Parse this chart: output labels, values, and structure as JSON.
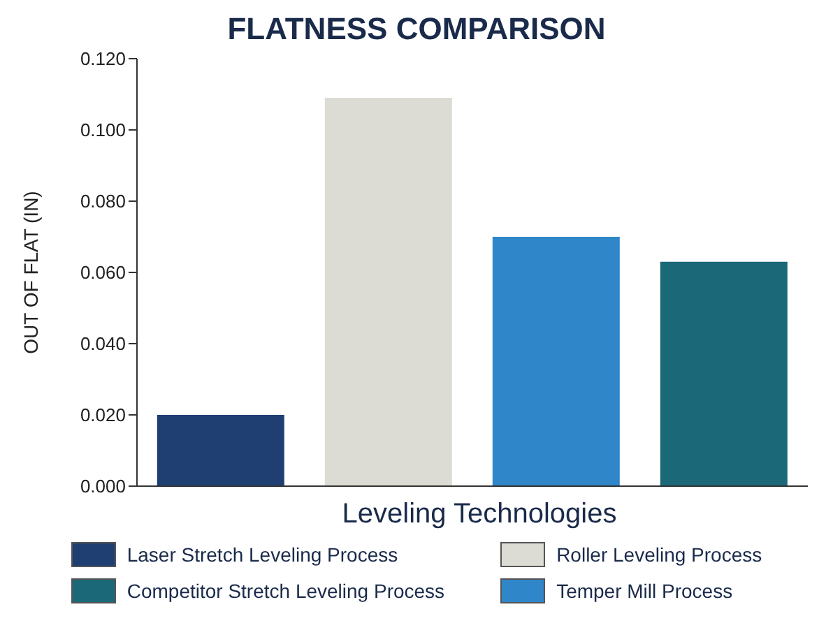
{
  "chart_data": {
    "type": "bar",
    "title": "FLATNESS COMPARISON",
    "xlabel": "Leveling Technologies",
    "ylabel": "OUT OF FLAT (IN)",
    "categories": [
      null,
      null,
      null,
      null
    ],
    "stacked": true,
    "legend": "bottom",
    "ylim": [
      0,
      0.12
    ],
    "yticks": [
      {
        "value": 0,
        "label": "0.000"
      },
      {
        "value": 0.02,
        "label": "0.020"
      },
      {
        "value": 0.04,
        "label": "0.040"
      },
      {
        "value": 0.06,
        "label": "0.060"
      },
      {
        "value": 0.08,
        "label": "0.080"
      },
      {
        "value": 0.1,
        "label": "0.100"
      },
      {
        "value": 0.12,
        "label": "0.120"
      }
    ],
    "series": [
      {
        "name": "Laser Stretch Leveling Process",
        "color": "#1f3f73",
        "values": [
          0.02,
          null,
          null,
          null
        ]
      },
      {
        "name": "Roller Leveling Process",
        "color": "#dcdcd4",
        "values": [
          null,
          0.109,
          null,
          null
        ]
      },
      {
        "name": "Competitor Stretch Leveling Process",
        "color": "#1a6878",
        "values": [
          null,
          null,
          null,
          0.063
        ]
      },
      {
        "name": "Temper Mill Process",
        "color": "#2f86c8",
        "values": [
          null,
          null,
          0.07,
          null
        ]
      }
    ]
  }
}
